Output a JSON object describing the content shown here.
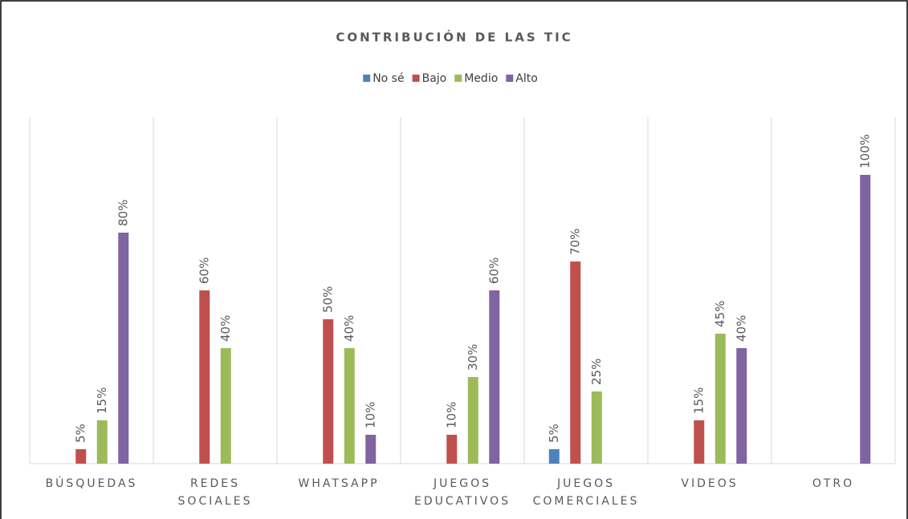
{
  "chart_data": {
    "type": "bar",
    "title": "CONTRIBUCIÓN DE LAS TIC",
    "categories": [
      "BÚSQUEDAS",
      "REDES SOCIALES",
      "WHATSAPP",
      "JUEGOS EDUCATIVOS",
      "JUEGOS COMERCIALES",
      "VIDEOS",
      "OTRO"
    ],
    "series": [
      {
        "name": "No sé",
        "color": "#4f81bd",
        "values": [
          null,
          null,
          null,
          null,
          5,
          null,
          null
        ],
        "value_labels": [
          null,
          null,
          null,
          null,
          "5%",
          null,
          null
        ]
      },
      {
        "name": "Bajo",
        "color": "#c0504d",
        "values": [
          5,
          60,
          50,
          10,
          70,
          15,
          null
        ],
        "value_labels": [
          "5%",
          "60%",
          "50%",
          "10%",
          "70%",
          "15%",
          null
        ]
      },
      {
        "name": "Medio",
        "color": "#9bbb59",
        "values": [
          15,
          40,
          40,
          30,
          25,
          45,
          null
        ],
        "value_labels": [
          "15%",
          "40%",
          "40%",
          "30%",
          "25%",
          "45%",
          null
        ]
      },
      {
        "name": "Alto",
        "color": "#8064a2",
        "values": [
          80,
          null,
          10,
          60,
          null,
          40,
          100
        ],
        "value_labels": [
          "80%",
          null,
          "10%",
          "60%",
          null,
          "40%",
          "100%"
        ]
      }
    ],
    "ylim": [
      0,
      120
    ],
    "legend": "top",
    "grid": "vertical"
  }
}
